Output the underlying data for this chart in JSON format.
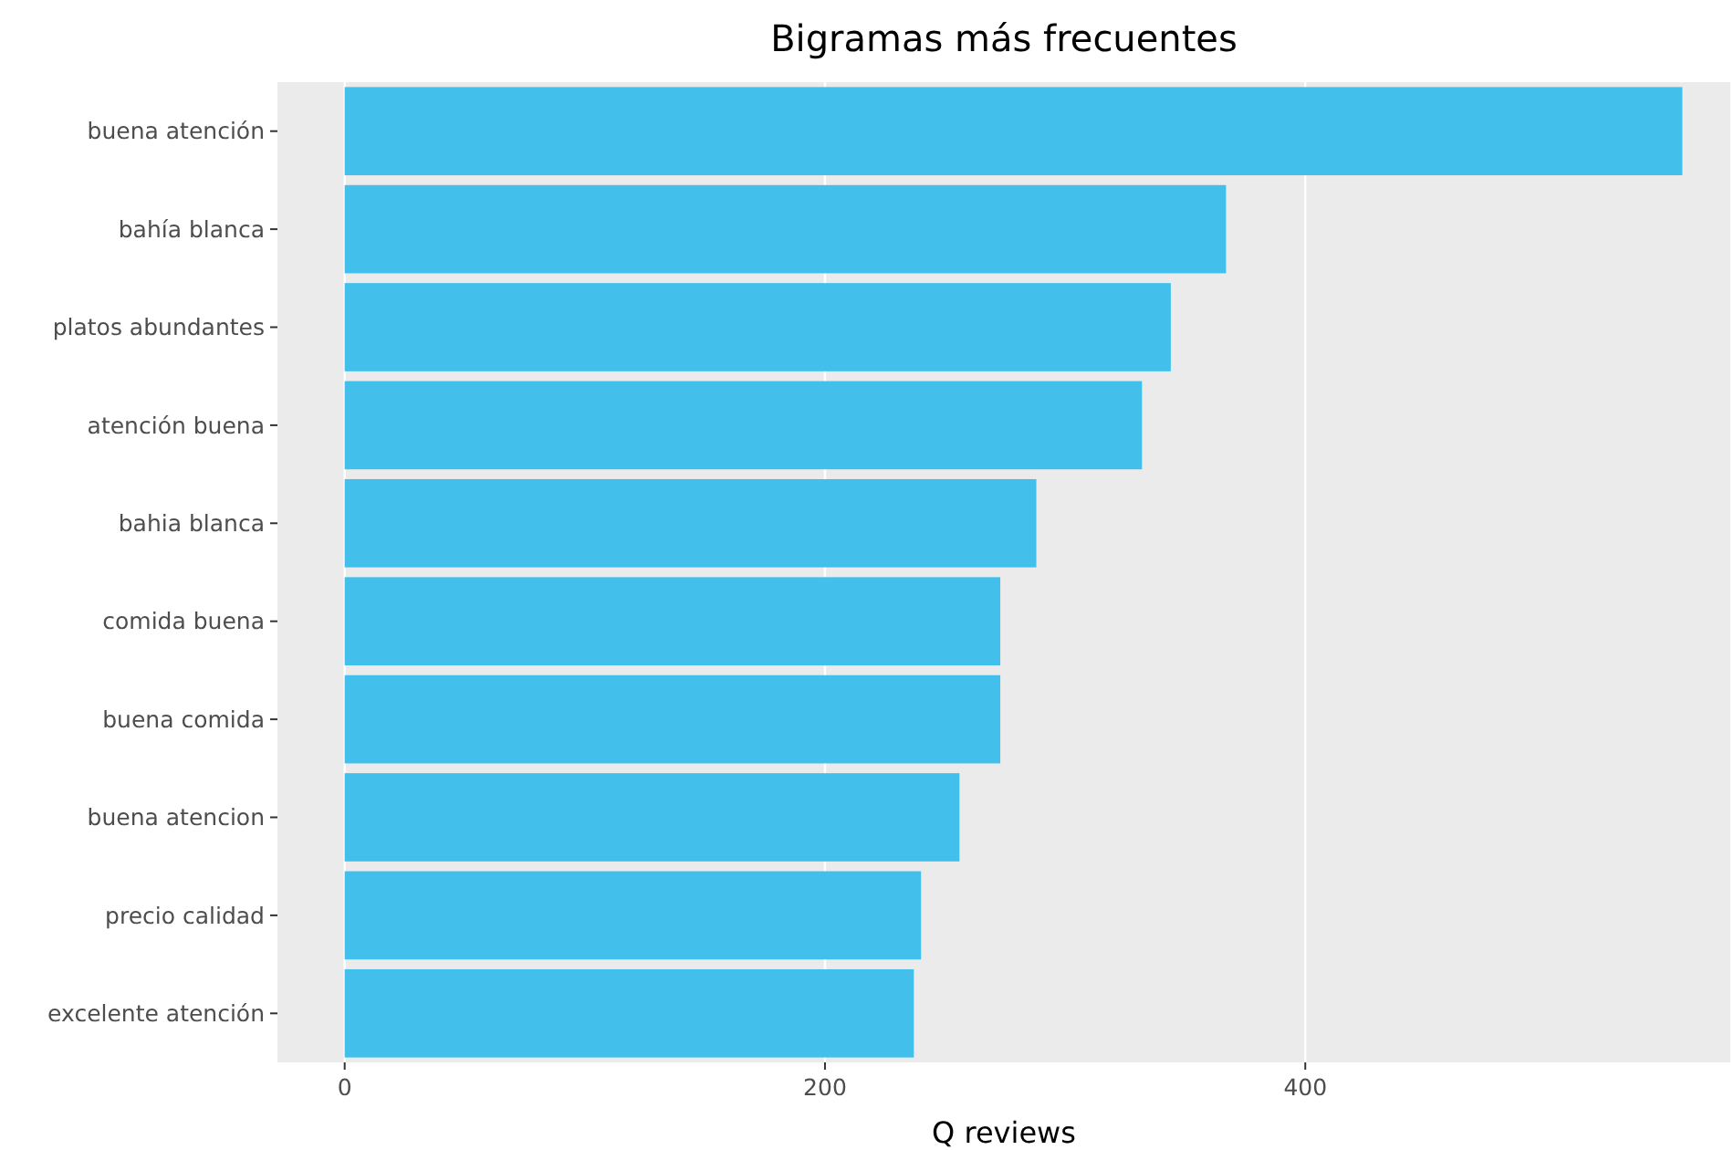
{
  "chart_data": {
    "type": "bar",
    "title": "Bigramas más frecuentes",
    "xlabel": "Q reviews",
    "orientation": "horizontal",
    "categories": [
      "buena atención",
      "bahía blanca",
      "platos abundantes",
      "atención buena",
      "bahia blanca",
      "comida buena",
      "buena comida",
      "buena atencion",
      "precio calidad",
      "excelente atención"
    ],
    "values": [
      557,
      367,
      344,
      332,
      288,
      273,
      273,
      256,
      240,
      237
    ],
    "color": "#42bfeb",
    "xlim": [
      -28,
      577
    ],
    "xticks": [
      0,
      200,
      400
    ],
    "grid": "x"
  }
}
